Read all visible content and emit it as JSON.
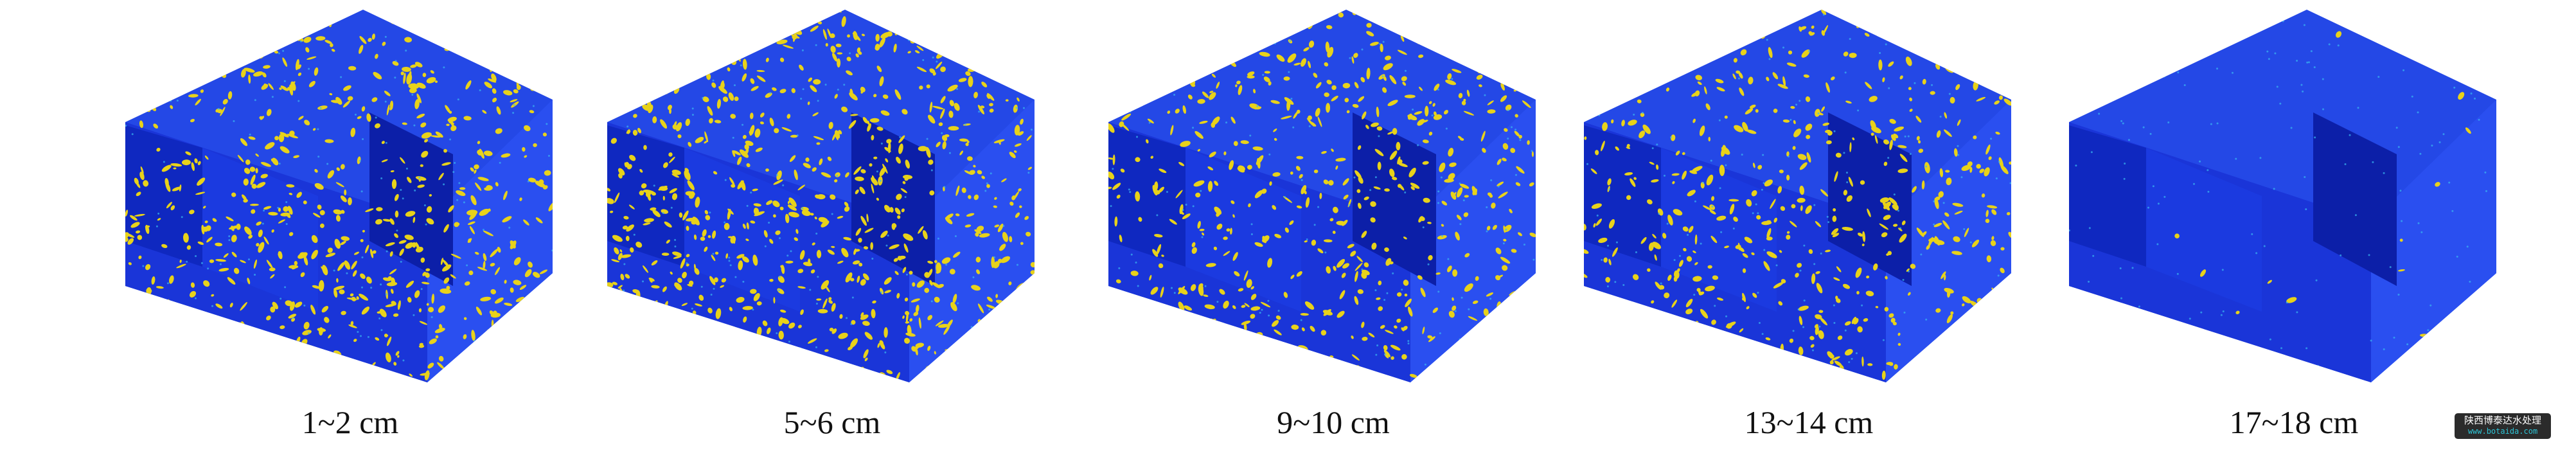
{
  "panels": [
    {
      "label": "1~2 cm"
    },
    {
      "label": "5~6 cm"
    },
    {
      "label": "9~10 cm"
    },
    {
      "label": "13~14 cm"
    },
    {
      "label": "17~18 cm"
    }
  ],
  "colors": {
    "matrix": "#1f3fe0",
    "matrix_shadow": "#0a1fb0",
    "pore": "#e8d21a",
    "speck": "#39b8f0"
  },
  "watermark": {
    "line1": "陕西博泰达水处理",
    "line2": "www.botaida.com"
  }
}
